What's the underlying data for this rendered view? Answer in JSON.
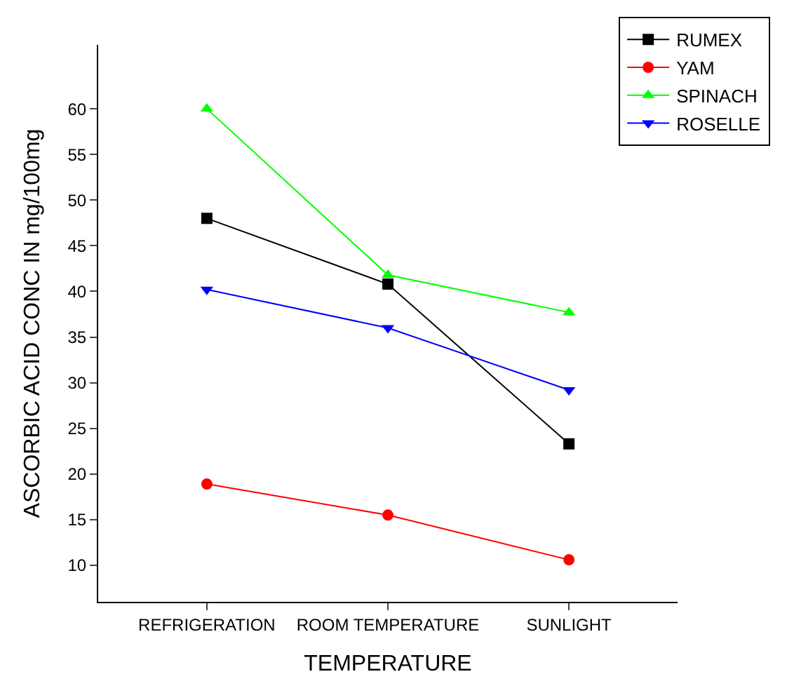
{
  "chart_data": {
    "type": "line",
    "xlabel": "TEMPERATURE",
    "ylabel": "ASCORBIC ACID CONC IN mg/100mg",
    "categories": [
      "REFRIGERATION",
      "ROOM TEMPERATURE",
      "SUNLIGHT"
    ],
    "series": [
      {
        "name": "RUMEX",
        "color": "#000000",
        "marker": "square",
        "values": [
          48,
          40.8,
          23.3
        ]
      },
      {
        "name": "YAM",
        "color": "#ff0000",
        "marker": "circle",
        "values": [
          18.9,
          15.5,
          10.6
        ]
      },
      {
        "name": "SPINACH",
        "color": "#00ff00",
        "marker": "triangle",
        "values": [
          60,
          41.8,
          37.7
        ]
      },
      {
        "name": "ROSELLE",
        "color": "#0000ff",
        "marker": "triangle-down",
        "values": [
          40.2,
          36,
          29.2
        ]
      }
    ],
    "ylim": [
      6,
      67
    ],
    "yticks": [
      10,
      15,
      20,
      25,
      30,
      35,
      40,
      45,
      50,
      55,
      60
    ],
    "legend": "top right",
    "line_style": "solid"
  }
}
